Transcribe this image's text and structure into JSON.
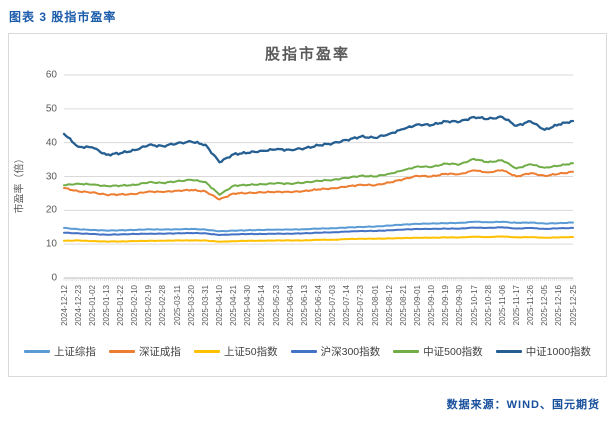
{
  "header": {
    "title": "图表 3 股指市盈率"
  },
  "source": {
    "label": "数据来源：WIND、国元期货"
  },
  "colors": {
    "header_blue": "#1B5CAB",
    "source_blue": "#174F9C",
    "title_gray": "#595959",
    "axis_text_gray": "#595959",
    "gridline": "#D9D9D9",
    "axis_line": "#BFBFBF",
    "box_border": "#D9D9D9"
  },
  "chart_data": {
    "type": "line",
    "title": "股指市盈率",
    "xlabel": "",
    "ylabel": "市盈率（倍）",
    "ylim": [
      0,
      60
    ],
    "ytick_interval": 10,
    "grid": true,
    "legend_position": "bottom",
    "categories": [
      "2024-12-12",
      "2024-12-23",
      "2025-01-02",
      "2025-01-13",
      "2025-01-22",
      "2025-02-10",
      "2025-02-19",
      "2025-02-28",
      "2025-03-11",
      "2025-03-20",
      "2025-03-31",
      "2025-04-10",
      "2025-04-21",
      "2025-04-30",
      "2025-05-14",
      "2025-05-23",
      "2025-06-04",
      "2025-06-13",
      "2025-06-24",
      "2025-07-03",
      "2025-07-14",
      "2025-07-23",
      "2025-08-01",
      "2025-08-12",
      "2025-08-21",
      "2025-09-01",
      "2025-09-10",
      "2025-09-19",
      "2025-09-30",
      "2025-10-17",
      "2025-10-28",
      "2025-11-06",
      "2025-11-17",
      "2025-11-26",
      "2025-12-05",
      "2025-12-16",
      "2025-12-25"
    ],
    "series": [
      {
        "name": "上证综指",
        "color": "#5B9BD5",
        "values": [
          14.8,
          14.4,
          14.2,
          14.0,
          14.1,
          14.2,
          14.4,
          14.3,
          14.4,
          14.5,
          14.3,
          13.8,
          14.0,
          14.1,
          14.2,
          14.3,
          14.3,
          14.4,
          14.6,
          14.7,
          14.9,
          15.1,
          15.2,
          15.5,
          15.8,
          16.0,
          16.1,
          16.2,
          16.3,
          16.6,
          16.5,
          16.6,
          16.3,
          16.4,
          16.1,
          16.2,
          16.4
        ]
      },
      {
        "name": "深证成指",
        "color": "#ED7D31",
        "values": [
          26.6,
          25.6,
          25.3,
          24.6,
          24.7,
          24.8,
          25.6,
          25.4,
          25.8,
          26.0,
          25.6,
          23.2,
          25.0,
          25.1,
          25.3,
          25.5,
          25.4,
          25.7,
          26.2,
          26.5,
          27.0,
          27.6,
          27.4,
          28.2,
          29.2,
          30.2,
          30.0,
          30.8,
          30.7,
          31.8,
          31.2,
          31.9,
          30.0,
          31.0,
          30.2,
          30.8,
          31.4
        ]
      },
      {
        "name": "上证50指数",
        "color": "#FFC000",
        "values": [
          11.0,
          11.1,
          10.9,
          10.8,
          10.8,
          10.9,
          11.0,
          11.0,
          11.1,
          11.1,
          11.1,
          10.7,
          10.9,
          11.0,
          11.0,
          11.1,
          11.1,
          11.1,
          11.3,
          11.3,
          11.5,
          11.6,
          11.6,
          11.7,
          11.8,
          11.9,
          11.9,
          12.0,
          12.0,
          12.2,
          12.1,
          12.3,
          12.0,
          12.1,
          11.9,
          12.0,
          12.1
        ]
      },
      {
        "name": "沪深300指数",
        "color": "#4472C4",
        "values": [
          13.4,
          13.2,
          13.0,
          12.8,
          12.9,
          13.0,
          13.1,
          13.1,
          13.2,
          13.3,
          13.2,
          12.7,
          12.9,
          13.0,
          13.0,
          13.1,
          13.1,
          13.2,
          13.4,
          13.5,
          13.7,
          13.9,
          13.9,
          14.1,
          14.3,
          14.5,
          14.5,
          14.6,
          14.6,
          14.9,
          14.8,
          15.0,
          14.6,
          14.8,
          14.5,
          14.7,
          14.8
        ]
      },
      {
        "name": "中证500指数",
        "color": "#70AD47",
        "values": [
          27.4,
          27.9,
          27.6,
          27.2,
          27.3,
          27.5,
          28.3,
          28.1,
          28.6,
          29.0,
          28.4,
          24.6,
          27.3,
          27.5,
          27.7,
          28.0,
          27.9,
          28.2,
          28.7,
          29.0,
          29.6,
          30.2,
          30.0,
          30.8,
          31.8,
          33.0,
          32.8,
          33.8,
          33.6,
          35.2,
          34.2,
          34.8,
          32.4,
          33.6,
          32.6,
          33.2,
          33.9
        ]
      },
      {
        "name": "中证1000指数",
        "color": "#255E91",
        "values": [
          42.6,
          38.8,
          38.6,
          36.4,
          36.9,
          37.8,
          39.3,
          39.0,
          39.8,
          40.3,
          39.4,
          34.2,
          36.6,
          37.0,
          37.6,
          38.0,
          37.9,
          38.3,
          39.2,
          39.8,
          40.8,
          41.8,
          41.4,
          42.6,
          44.0,
          45.4,
          45.2,
          46.3,
          46.2,
          47.6,
          47.0,
          47.6,
          45.0,
          46.3,
          43.8,
          45.4,
          46.4
        ]
      }
    ]
  }
}
